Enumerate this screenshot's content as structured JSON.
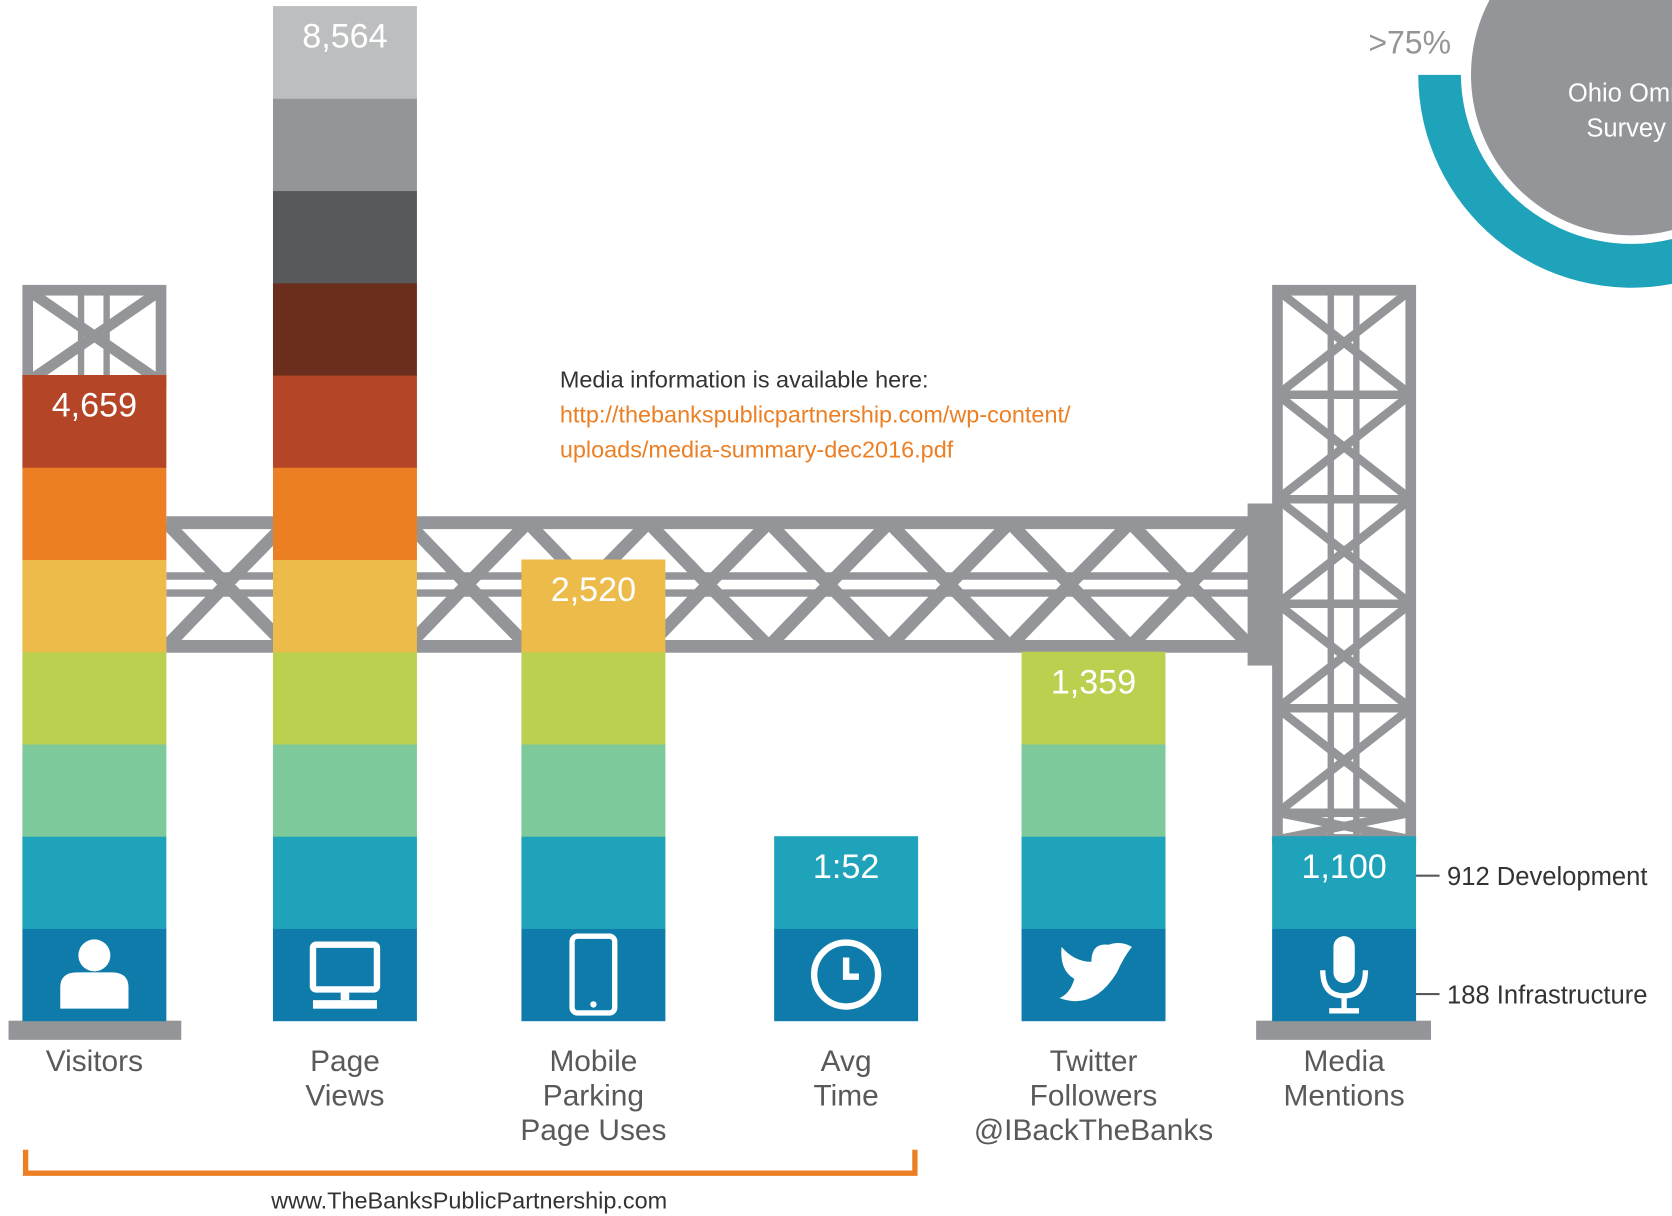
{
  "columns": [
    {
      "value": "4,659",
      "label": [
        "Visitors"
      ]
    },
    {
      "value": "8,564",
      "label": [
        "Page",
        "Views"
      ]
    },
    {
      "value": "2,520",
      "label": [
        "Mobile",
        "Parking",
        "Page Uses"
      ]
    },
    {
      "value": "1:52",
      "label": [
        "Avg",
        "Time"
      ]
    },
    {
      "value": "1,359",
      "label": [
        "Twitter",
        "Followers",
        "@IBackTheBanks"
      ]
    },
    {
      "value": "1,100",
      "label": [
        "Media",
        "Mentions"
      ]
    }
  ],
  "annotations": [
    "912 Development",
    "188 Infrastructure"
  ],
  "note": {
    "text": "Media information is available here:",
    "link": [
      "http://thebankspublicpartnership.com/wp-content/",
      "uploads/media-summary-dec2016.pdf"
    ]
  },
  "footer": "www.TheBanksPublicPartnership.com",
  "survey": {
    "percent": ">75%",
    "label": [
      "Ohio Omn",
      "Survey"
    ]
  }
}
